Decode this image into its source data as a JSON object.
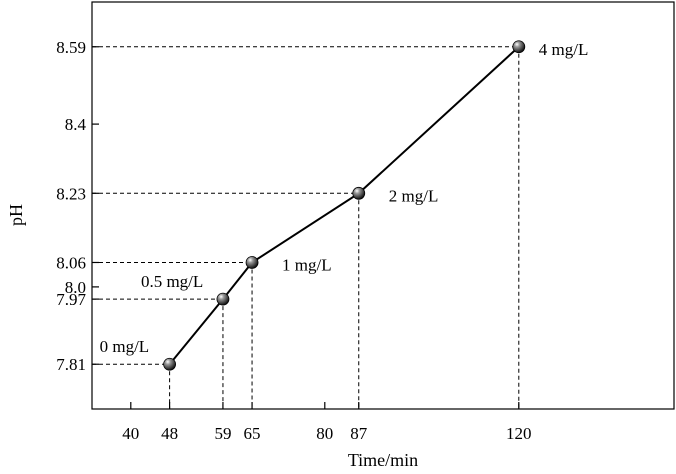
{
  "chart_data": {
    "type": "line",
    "xlabel": "Time/min",
    "ylabel": "pH",
    "xlim": [
      32,
      152
    ],
    "ylim": [
      7.7,
      8.7
    ],
    "x_ticks": [
      40,
      48,
      59,
      65,
      80,
      87,
      120
    ],
    "x_tick_labels": [
      "40",
      "48",
      "59",
      "65",
      "80",
      "87",
      "120"
    ],
    "y_ticks": [
      7.81,
      7.97,
      8.0,
      8.06,
      8.23,
      8.4,
      8.59
    ],
    "y_tick_labels": [
      "7.81",
      "7.97",
      "8.0",
      "8.06",
      "8.23",
      "8.4",
      "8.59"
    ],
    "grid": false,
    "legend": "none",
    "series": [
      {
        "x": [
          48,
          59,
          65,
          87,
          120
        ],
        "y": [
          7.81,
          7.97,
          8.06,
          8.23,
          8.59
        ],
        "point_labels": [
          "0 mg/L",
          "0.5 mg/L",
          "1 mg/L",
          "2 mg/L",
          "4 mg/L"
        ]
      }
    ],
    "guide_lines": "dashed reference lines from each point to both axes",
    "colors": {
      "line": "#000000",
      "marker": "#1a1a1a"
    }
  }
}
